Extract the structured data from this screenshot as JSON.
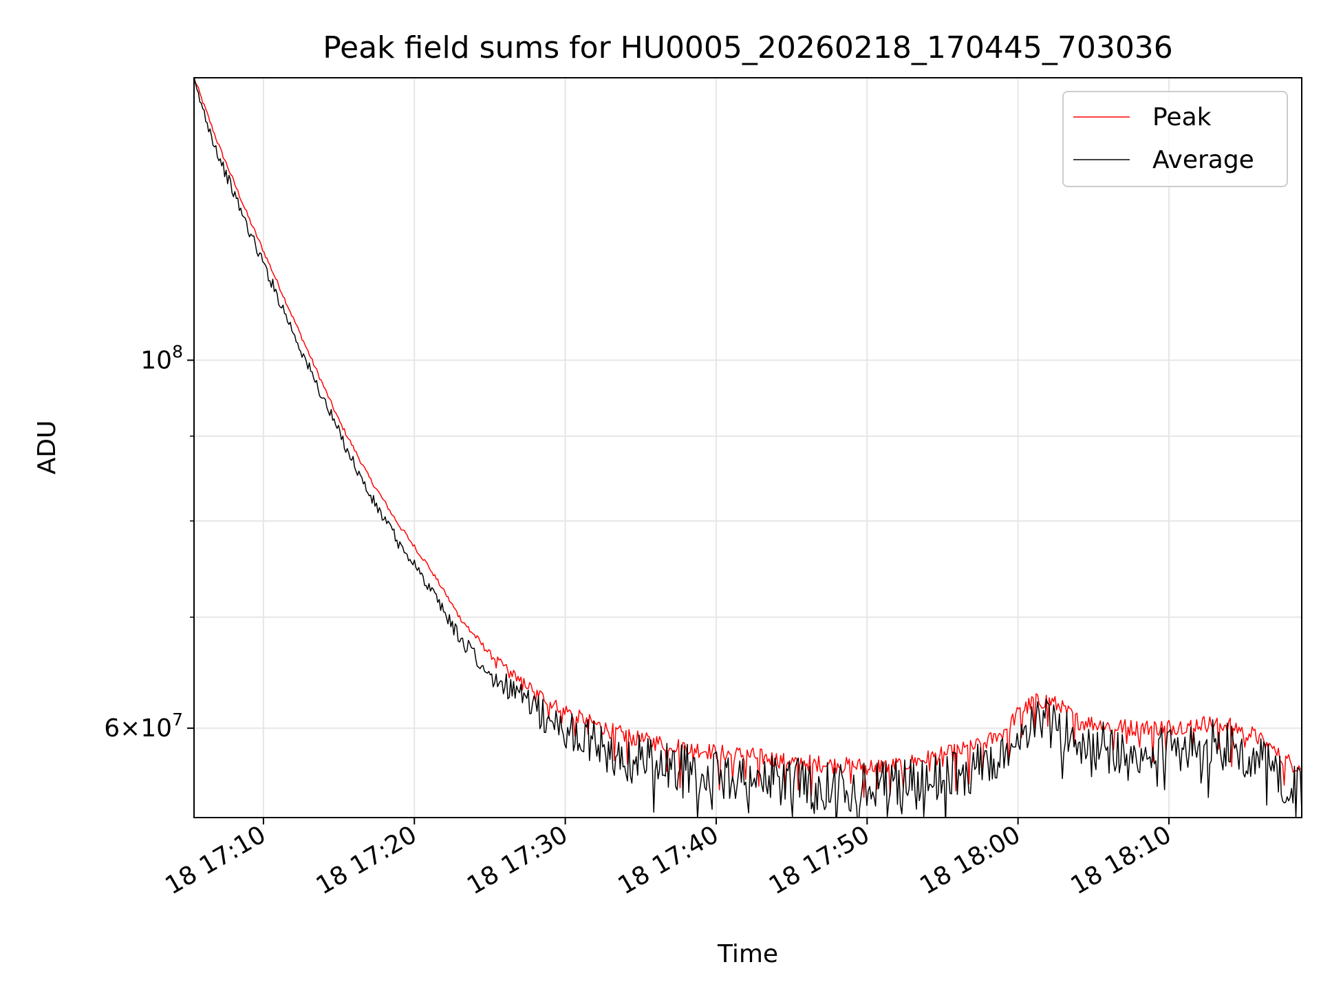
{
  "chart_data": {
    "type": "line",
    "title": "Peak field sums for HU0005_20260218_170445_703036",
    "xlabel": "Time",
    "ylabel": "ADU",
    "yscale": "log",
    "grid": true,
    "legend_position": "top-right",
    "x_unit": "minutes since 17:00 on day 18",
    "xlim": [
      5.4,
      78.8
    ],
    "ylim": [
      53000000,
      148000000
    ],
    "x_ticks": [
      {
        "value": 10,
        "label": "18 17:10"
      },
      {
        "value": 20,
        "label": "18 17:20"
      },
      {
        "value": 30,
        "label": "18 17:30"
      },
      {
        "value": 40,
        "label": "18 17:40"
      },
      {
        "value": 50,
        "label": "18 17:50"
      },
      {
        "value": 60,
        "label": "18 18:00"
      },
      {
        "value": 70,
        "label": "18 18:10"
      }
    ],
    "y_major_ticks": [
      {
        "value": 100000000,
        "base": "10",
        "exp": "8",
        "label": "10^8"
      },
      {
        "value": 60000000,
        "mant": "6",
        "times": "×",
        "base": "10",
        "exp": "7",
        "label": "6×10^7"
      }
    ],
    "y_minor_ticks": [
      70000000,
      80000000,
      90000000
    ],
    "series": [
      {
        "name": "Peak",
        "color": "#ff0000",
        "noise_amp": 0.012,
        "dip_depth": 0.05,
        "dip_every": 9,
        "anchors": [
          [
            5.4,
            148000000
          ],
          [
            7,
            135000000
          ],
          [
            9,
            122000000
          ],
          [
            11,
            111000000
          ],
          [
            13,
            101000000
          ],
          [
            15,
            92000000
          ],
          [
            17,
            85000000
          ],
          [
            19,
            79500000
          ],
          [
            21,
            75000000
          ],
          [
            23,
            70000000
          ],
          [
            25,
            66500000
          ],
          [
            27,
            64200000
          ],
          [
            29,
            62200000
          ],
          [
            31,
            60900000
          ],
          [
            33,
            59800000
          ],
          [
            35,
            59000000
          ],
          [
            38,
            58500000
          ],
          [
            40,
            58000000
          ],
          [
            42,
            57800000
          ],
          [
            45,
            57300000
          ],
          [
            48,
            57000000
          ],
          [
            50,
            56900000
          ],
          [
            52,
            57000000
          ],
          [
            55,
            57800000
          ],
          [
            57,
            58400000
          ],
          [
            58.7,
            59300000
          ],
          [
            60,
            61200000
          ],
          [
            61,
            62200000
          ],
          [
            62,
            62400000
          ],
          [
            63,
            61600000
          ],
          [
            64,
            60600000
          ],
          [
            66,
            60200000
          ],
          [
            68,
            60000000
          ],
          [
            70,
            60100000
          ],
          [
            72,
            60400000
          ],
          [
            74,
            60300000
          ],
          [
            75.5,
            59500000
          ],
          [
            76.5,
            58600000
          ],
          [
            77.5,
            57500000
          ],
          [
            78.8,
            56800000
          ]
        ]
      },
      {
        "name": "Average",
        "color": "#000000",
        "noise_amp": 0.035,
        "dip_depth": 0.04,
        "dip_every": 5,
        "anchors": [
          [
            5.4,
            147000000
          ],
          [
            7,
            133000000
          ],
          [
            9,
            120000000
          ],
          [
            11,
            109000000
          ],
          [
            13,
            99000000
          ],
          [
            15,
            90500000
          ],
          [
            17,
            83000000
          ],
          [
            19,
            77500000
          ],
          [
            21,
            73000000
          ],
          [
            23,
            68000000
          ],
          [
            25,
            64800000
          ],
          [
            27,
            62600000
          ],
          [
            29,
            60700000
          ],
          [
            31,
            59400000
          ],
          [
            33,
            58200000
          ],
          [
            35,
            57400000
          ],
          [
            38,
            56800000
          ],
          [
            40,
            56300000
          ],
          [
            42,
            56100000
          ],
          [
            45,
            55700000
          ],
          [
            48,
            55400000
          ],
          [
            50,
            55300000
          ],
          [
            52,
            55400000
          ],
          [
            55,
            56100000
          ],
          [
            57,
            56700000
          ],
          [
            58.7,
            57600000
          ],
          [
            60,
            59600000
          ],
          [
            61,
            60400000
          ],
          [
            62,
            60600000
          ],
          [
            63,
            59800000
          ],
          [
            64,
            58800000
          ],
          [
            66,
            58400000
          ],
          [
            68,
            58300000
          ],
          [
            70,
            58400000
          ],
          [
            72,
            58700000
          ],
          [
            74,
            58600000
          ],
          [
            75.5,
            57800000
          ],
          [
            76.5,
            56900000
          ],
          [
            77.5,
            55600000
          ],
          [
            78.8,
            54900000
          ]
        ]
      }
    ]
  }
}
